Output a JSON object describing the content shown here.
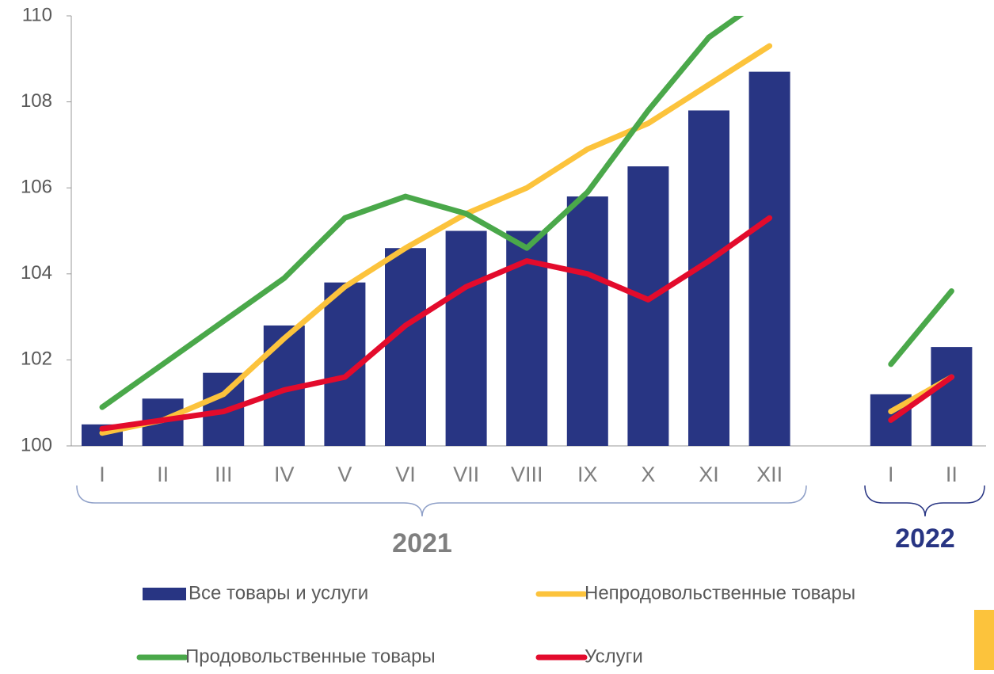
{
  "chart_data": {
    "type": "bar",
    "categories": [
      "I",
      "II",
      "III",
      "IV",
      "V",
      "VI",
      "VII",
      "VIII",
      "IX",
      "X",
      "XI",
      "XII",
      null,
      "I",
      "II"
    ],
    "annotations": [
      "2021",
      "2022"
    ],
    "ylim": [
      100,
      110
    ],
    "yticks": [
      100,
      102,
      104,
      106,
      108,
      110
    ],
    "series": [
      {
        "name": "Все товары и услуги",
        "type": "bar",
        "color": "#283583",
        "values": [
          100.5,
          101.1,
          101.7,
          102.8,
          103.8,
          104.6,
          105.0,
          105.0,
          105.8,
          106.5,
          107.8,
          108.7,
          null,
          101.2,
          102.3
        ]
      },
      {
        "name": "Непродовольственные товары",
        "type": "line",
        "color": "#fcc33c",
        "values": [
          100.3,
          100.6,
          101.2,
          102.5,
          103.7,
          104.6,
          105.4,
          106.0,
          106.9,
          107.5,
          108.4,
          109.3,
          null,
          100.8,
          101.6
        ]
      },
      {
        "name": "Продовольственные товары",
        "type": "line",
        "color": "#4aa84a",
        "values": [
          100.9,
          101.9,
          102.9,
          103.9,
          105.3,
          105.8,
          105.4,
          104.6,
          105.9,
          107.8,
          109.5,
          110.5,
          null,
          101.9,
          103.6
        ]
      },
      {
        "name": "Услуги",
        "type": "line",
        "color": "#e30b2c",
        "values": [
          100.4,
          100.6,
          100.8,
          101.3,
          101.6,
          102.8,
          103.7,
          104.3,
          104.0,
          103.4,
          104.3,
          105.3,
          null,
          100.6,
          101.6
        ]
      }
    ]
  }
}
